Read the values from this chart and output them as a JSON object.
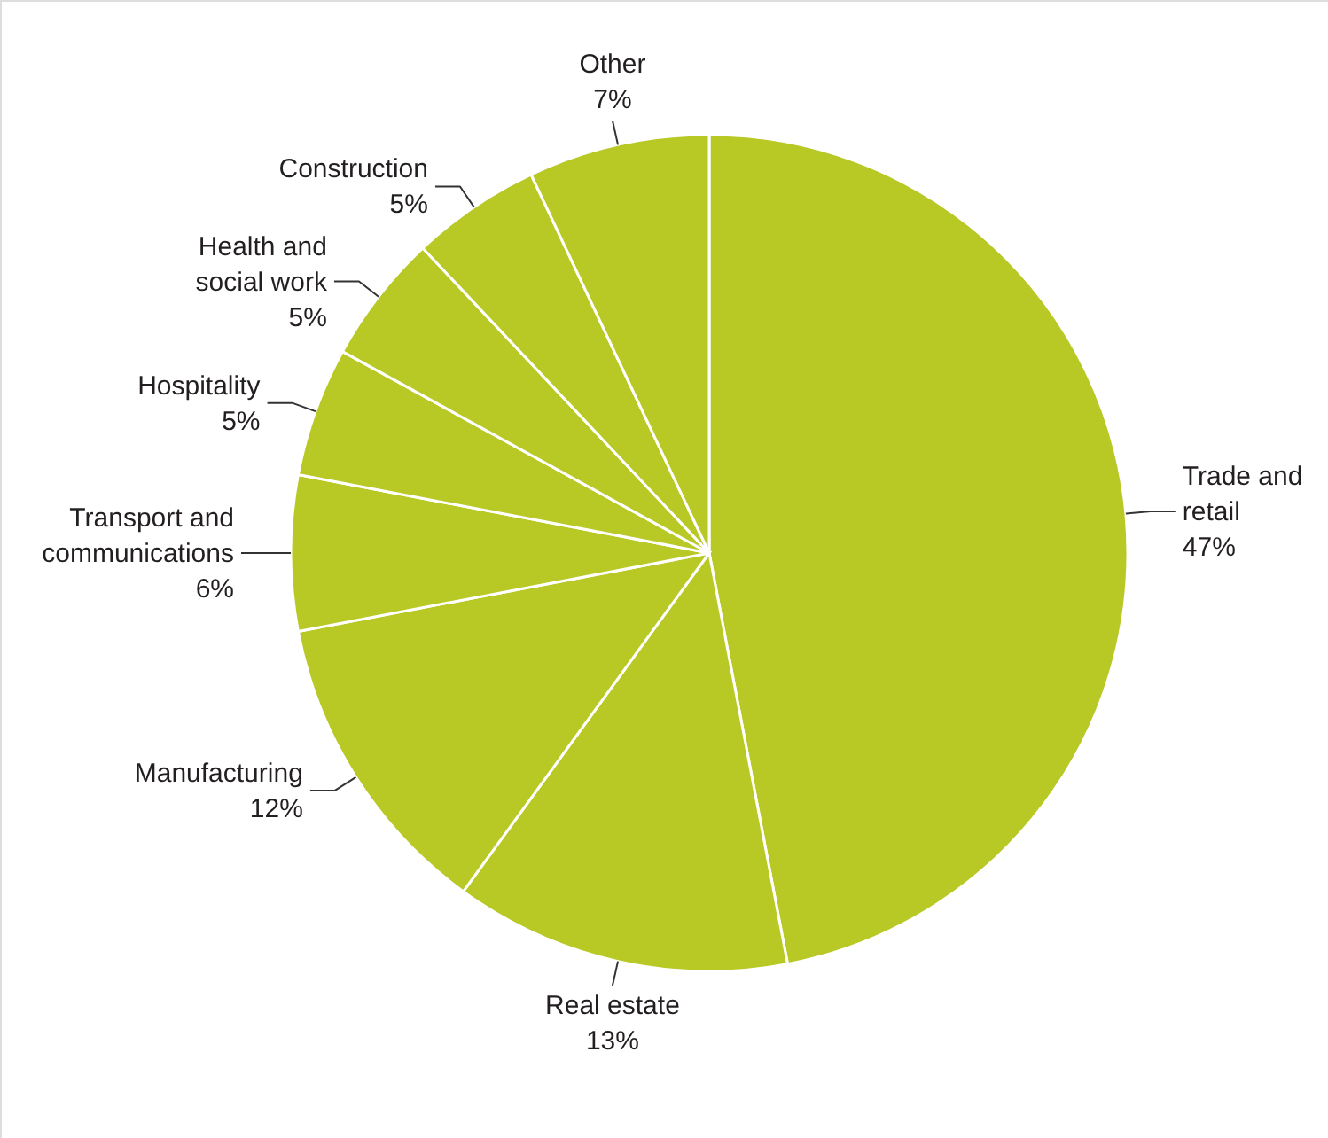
{
  "chart_data": {
    "type": "pie",
    "categories": [
      "Trade and retail",
      "Real estate",
      "Manufacturing",
      "Transport and communications",
      "Hospitality",
      "Health and social work",
      "Construction",
      "Other"
    ],
    "values": [
      47,
      13,
      12,
      6,
      5,
      5,
      5,
      7
    ],
    "value_labels": [
      "47%",
      "13%",
      "12%",
      "6%",
      "5%",
      "5%",
      "5%",
      "7%"
    ],
    "color": "#b8c825"
  }
}
